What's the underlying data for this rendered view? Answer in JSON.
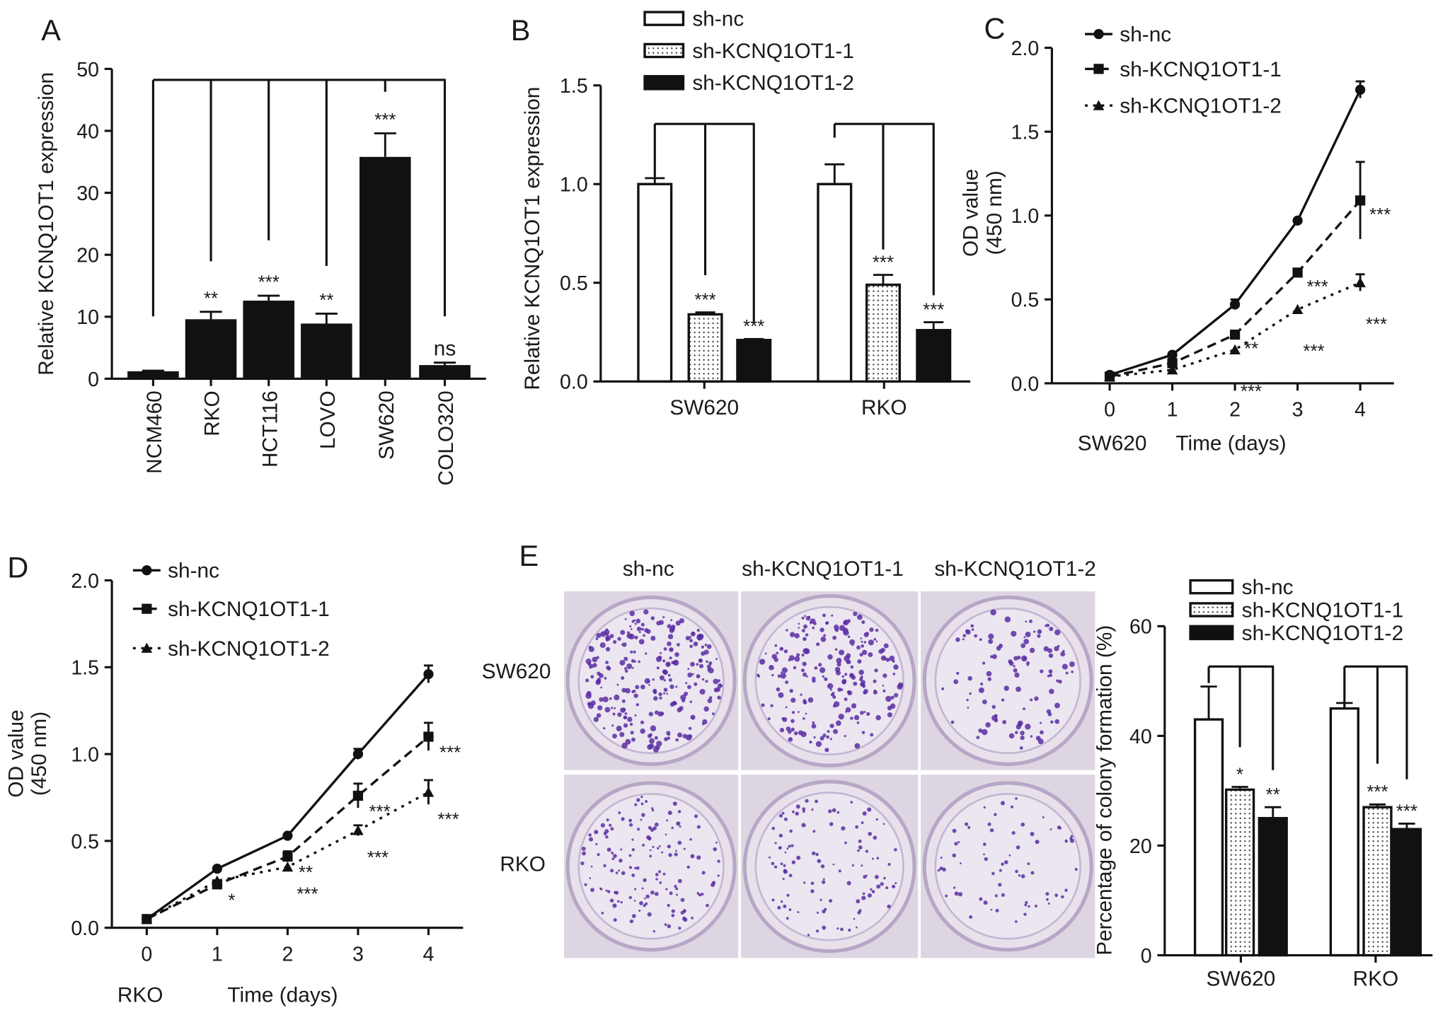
{
  "colors": {
    "ink": "#111111",
    "plate_bg": "#e6dfe8",
    "colony": "#5a2da3"
  },
  "chart_data": [
    {
      "panel": "A",
      "type": "bar",
      "categories": [
        "NCM460",
        "RKO",
        "HCT116",
        "LOVO",
        "SW620",
        "COLO320"
      ],
      "values": [
        1.2,
        9.6,
        12.6,
        8.9,
        35.8,
        2.2
      ],
      "errors": [
        0.1,
        1.2,
        0.8,
        1.6,
        3.8,
        0.4
      ],
      "significance": [
        "",
        "**",
        "***",
        "**",
        "***",
        "ns"
      ],
      "ylabel": "Relative KCNQ1OT1 expression",
      "ylim": [
        0,
        50
      ],
      "yticks": [
        "0",
        "10",
        "20",
        "30",
        "40",
        "50"
      ]
    },
    {
      "panel": "B",
      "type": "bar",
      "categories": [
        "SW620",
        "RKO"
      ],
      "series": [
        {
          "name": "sh-nc",
          "values": [
            1.0,
            1.0
          ],
          "errors": [
            0.03,
            0.1
          ],
          "significance": [
            "",
            ""
          ]
        },
        {
          "name": "sh-KCNQ1OT1-1",
          "values": [
            0.34,
            0.49
          ],
          "errors": [
            0.01,
            0.05
          ],
          "significance": [
            "***",
            "***"
          ]
        },
        {
          "name": "sh-KCNQ1OT1-2",
          "values": [
            0.21,
            0.26
          ],
          "errors": [
            0.005,
            0.04
          ],
          "significance": [
            "***",
            "***"
          ]
        }
      ],
      "ylabel": "Relative KCNQ1OT1 expression",
      "ylim": [
        0,
        1.5
      ],
      "yticks": [
        "0.0",
        "0.5",
        "1.0",
        "1.5"
      ],
      "legend": "top"
    },
    {
      "panel": "C",
      "type": "line",
      "cell_line": "SW620",
      "x": [
        0,
        1,
        2,
        3,
        4
      ],
      "xticks": [
        "0",
        "1",
        "2",
        "3",
        "4"
      ],
      "series": [
        {
          "name": "sh-nc",
          "values": [
            0.05,
            0.17,
            0.47,
            0.97,
            1.75
          ],
          "errors": [
            0.01,
            0.01,
            0.03,
            0.01,
            0.05
          ],
          "significance": [
            "",
            "",
            "",
            "",
            ""
          ]
        },
        {
          "name": "sh-KCNQ1OT1-1",
          "values": [
            0.04,
            0.12,
            0.29,
            0.66,
            1.09
          ],
          "errors": [
            0.01,
            0.01,
            0.02,
            0.02,
            0.23
          ],
          "significance": [
            "",
            "",
            "**",
            "***",
            "***"
          ]
        },
        {
          "name": "sh-KCNQ1OT1-2",
          "values": [
            0.04,
            0.08,
            0.2,
            0.44,
            0.6
          ],
          "errors": [
            0.01,
            0.01,
            0.02,
            0.02,
            0.05
          ],
          "significance": [
            "",
            "",
            "***",
            "***",
            "***"
          ]
        }
      ],
      "xlabel": "Time (days)",
      "ylabel": "OD value",
      "ylabel2": "(450 nm)",
      "ylim": [
        0,
        2.0
      ],
      "yticks": [
        "0.0",
        "0.5",
        "1.0",
        "1.5",
        "2.0"
      ],
      "legend": "top-left"
    },
    {
      "panel": "D",
      "type": "line",
      "cell_line": "RKO",
      "x": [
        0,
        1,
        2,
        3,
        4
      ],
      "xticks": [
        "0",
        "1",
        "2",
        "3",
        "4"
      ],
      "series": [
        {
          "name": "sh-nc",
          "values": [
            0.05,
            0.34,
            0.53,
            1.0,
            1.46
          ],
          "errors": [
            0.01,
            0.02,
            0.02,
            0.03,
            0.05
          ],
          "significance": [
            "",
            "",
            "",
            "",
            ""
          ]
        },
        {
          "name": "sh-KCNQ1OT1-1",
          "values": [
            0.05,
            0.25,
            0.41,
            0.76,
            1.1
          ],
          "errors": [
            0.01,
            0.02,
            0.03,
            0.07,
            0.08
          ],
          "significance": [
            "",
            "*",
            "**",
            "***",
            "***"
          ]
        },
        {
          "name": "sh-KCNQ1OT1-2",
          "values": [
            0.05,
            0.27,
            0.35,
            0.56,
            0.78
          ],
          "errors": [
            0.01,
            0.02,
            0.02,
            0.03,
            0.07
          ],
          "significance": [
            "",
            "",
            "***",
            "***",
            "***"
          ]
        }
      ],
      "xlabel": "Time (days)",
      "ylabel": "OD value",
      "ylabel2": "(450 nm)",
      "ylim": [
        0,
        2.0
      ],
      "yticks": [
        "0.0",
        "0.5",
        "1.0",
        "1.5",
        "2.0"
      ],
      "legend": "top-left"
    },
    {
      "panel": "E",
      "type": "bar",
      "image_columns": [
        "sh-nc",
        "sh-KCNQ1OT1-1",
        "sh-KCNQ1OT1-2"
      ],
      "image_rows": [
        "SW620",
        "RKO"
      ],
      "categories": [
        "SW620",
        "RKO"
      ],
      "series": [
        {
          "name": "sh-nc",
          "values": [
            43,
            45
          ],
          "errors": [
            6,
            1
          ],
          "significance": [
            "",
            ""
          ]
        },
        {
          "name": "sh-KCNQ1OT1-1",
          "values": [
            30.2,
            27
          ],
          "errors": [
            0.5,
            0.5
          ],
          "significance": [
            "*",
            "***"
          ]
        },
        {
          "name": "sh-KCNQ1OT1-2",
          "values": [
            25,
            23
          ],
          "errors": [
            2,
            1
          ],
          "significance": [
            "**",
            "***"
          ]
        }
      ],
      "ylabel": "Percentage of colony formation (%)",
      "ylim": [
        0,
        60
      ],
      "yticks": [
        "0",
        "20",
        "40",
        "60"
      ],
      "legend": "top"
    }
  ]
}
